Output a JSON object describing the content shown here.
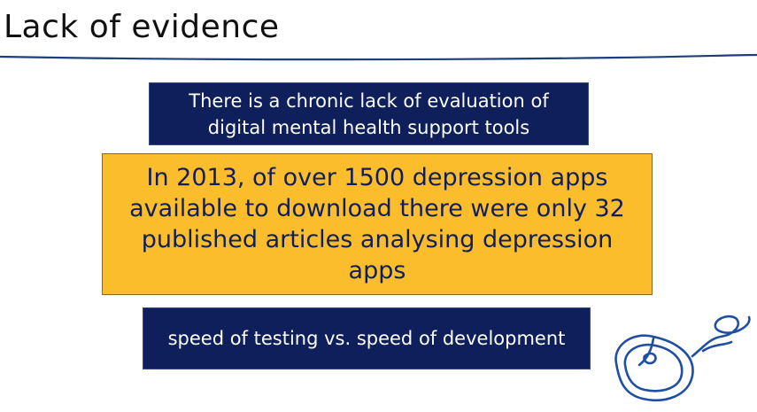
{
  "slide": {
    "title": "Lack of evidence"
  },
  "boxes": {
    "chronic_lack": "There is a chronic lack of evaluation of digital mental health support tools",
    "statistic": "In 2013, of over 1500 depression apps available to download there were only 32 published articles analysing depression apps",
    "speed": "speed of testing vs. speed of development"
  },
  "colors": {
    "navy": "#0f1f5c",
    "gold": "#fbbd2b",
    "rule": "#1f3f7a"
  },
  "icons": {
    "decoration": "computer-mouse-icon"
  }
}
